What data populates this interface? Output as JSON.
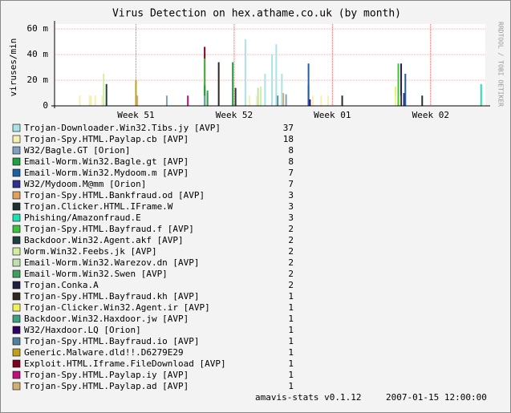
{
  "chart_data": {
    "type": "bar",
    "title": "Virus Detection on hex.athame.co.uk (by month)",
    "ylabel": "viruses/min",
    "side_label": "RRDTOOL / TOBI OETIKER",
    "footer": [
      "amavis-stats v0.1.12",
      "2007-01-15 12:00:00"
    ],
    "xlim": [
      0,
      30.7
    ],
    "xticks": [
      {
        "value": 5.8,
        "label": "Week 51"
      },
      {
        "value": 12.8,
        "label": "Week 52"
      },
      {
        "value": 19.8,
        "label": "Week 01"
      },
      {
        "value": 26.8,
        "label": "Week 02"
      }
    ],
    "ylim": [
      0,
      60
    ],
    "yticks": [
      0,
      {
        "value": 20,
        "label": "20 m"
      },
      {
        "value": 40,
        "label": "40 m"
      },
      {
        "value": 60,
        "label": "60 m"
      }
    ],
    "grid": true,
    "series": [
      {
        "name": "Trojan-Downloader.Win32.Tibs.jy [AVP]",
        "total": 37,
        "color": "#a8e4e4",
        "x": [
          13.6,
          15.0,
          15.5,
          15.8,
          16.2
        ],
        "values": [
          52,
          25,
          40,
          48,
          25
        ]
      },
      {
        "name": "Trojan-Spy.HTML.Paylap.cb [AVP]",
        "total": 18,
        "color": "#f4f0b0",
        "x": [
          1.8,
          2.5,
          2.6,
          2.9,
          3.4,
          13.9,
          14.4,
          18.4,
          19.0,
          19.5,
          24.3,
          24.6
        ],
        "values": [
          8,
          8,
          8,
          8,
          8,
          8,
          8,
          8,
          8,
          8,
          8,
          8
        ]
      },
      {
        "name": "W32/Bagle.GT [Orion]",
        "total": 8,
        "color": "#80a0c0",
        "x": [
          8.0,
          10.7,
          16.5
        ],
        "values": [
          8,
          8,
          9
        ]
      },
      {
        "name": "Email-Worm.Win32.Bagle.gt [AVP]",
        "total": 8,
        "color": "#20a040",
        "x": [
          10.7,
          12.7
        ],
        "values": [
          16,
          34
        ]
      },
      {
        "name": "Email-Worm.Win32.Mydoom.m [AVP]",
        "total": 7,
        "color": "#2060a0",
        "x": [
          18.1,
          25.0
        ],
        "values": [
          33,
          25
        ]
      },
      {
        "name": "W32/Mydoom.M@mm [Orion]",
        "total": 7,
        "color": "#303090",
        "x": [
          18.1,
          24.9
        ],
        "values": [
          16,
          10
        ]
      },
      {
        "name": "Trojan-Spy.HTML.Bankfraud.od [AVP]",
        "total": 3,
        "color": "#e0a060",
        "x": [
          16.3
        ],
        "values": [
          10
        ]
      },
      {
        "name": "Trojan.Clicker.HTML.IFrame.W",
        "total": 3,
        "color": "#203030",
        "x": [
          20.5,
          26.2
        ],
        "values": [
          8,
          8
        ]
      },
      {
        "name": "Phishing/Amazonfraud.E",
        "total": 3,
        "color": "#20e0b0",
        "x": [
          30.4
        ],
        "values": [
          17
        ]
      },
      {
        "name": "Trojan-Spy.HTML.Bayfraud.f [AVP]",
        "total": 2,
        "color": "#40c040",
        "x": [
          10.7,
          24.5
        ],
        "values": [
          37,
          33
        ]
      },
      {
        "name": "Backdoor.Win32.Agent.akf [AVP]",
        "total": 2,
        "color": "#204040",
        "x": [
          3.7,
          12.9
        ],
        "values": [
          17,
          14
        ]
      },
      {
        "name": "Worm.Win32.Feebs.jk [AVP]",
        "total": 2,
        "color": "#d0f0a0",
        "x": [
          3.5,
          14.7
        ],
        "values": [
          25,
          15
        ]
      },
      {
        "name": "Email-Worm.Win32.Warezov.dn [AVP]",
        "total": 2,
        "color": "#c0e0b0",
        "x": [
          14.5
        ],
        "values": [
          14
        ]
      },
      {
        "name": "Email-Worm.Win32.Swen [AVP]",
        "total": 2,
        "color": "#40a060",
        "x": [
          10.9
        ],
        "values": [
          12
        ]
      },
      {
        "name": "Trojan.Conka.A",
        "total": 2,
        "color": "#202040",
        "x": [
          24.7
        ],
        "values": [
          33
        ]
      },
      {
        "name": "Trojan-Spy.HTML.Bayfraud.kh [AVP]",
        "total": 1,
        "color": "#302820",
        "x": [
          11.7
        ],
        "values": [
          34
        ]
      },
      {
        "name": "Trojan-Clicker.Win32.Agent.ir [AVP]",
        "total": 1,
        "color": "#f0f060",
        "x": [
          24.3
        ],
        "values": [
          15
        ]
      },
      {
        "name": "Backdoor.Win32.Haxdoor.jw [AVP]",
        "total": 1,
        "color": "#40a080",
        "x": [
          10.9
        ],
        "values": [
          10
        ]
      },
      {
        "name": "W32/Haxdoor.LQ [Orion]",
        "total": 1,
        "color": "#300060",
        "x": [
          18.2
        ],
        "values": [
          5
        ]
      },
      {
        "name": "Trojan-Spy.HTML.Bayfraud.io [AVP]",
        "total": 1,
        "color": "#5080a0",
        "x": [
          15.9
        ],
        "values": [
          8
        ]
      },
      {
        "name": "Generic.Malware.dld!!.D6279E29",
        "total": 1,
        "color": "#c0a020",
        "x": [
          5.8
        ],
        "values": [
          20
        ]
      },
      {
        "name": "Exploit.HTML.Iframe.FileDownload [AVP]",
        "total": 1,
        "color": "#800020",
        "x": [
          10.7
        ],
        "values": [
          46
        ]
      },
      {
        "name": "Trojan-Spy.HTML.Paylap.iy [AVP]",
        "total": 1,
        "color": "#c0107a",
        "x": [
          9.5
        ],
        "values": [
          8
        ]
      },
      {
        "name": "Trojan-Spy.HTML.Paylap.ad [AVP]",
        "total": 1,
        "color": "#d0b070",
        "x": [
          5.9
        ],
        "values": [
          8
        ]
      }
    ]
  }
}
